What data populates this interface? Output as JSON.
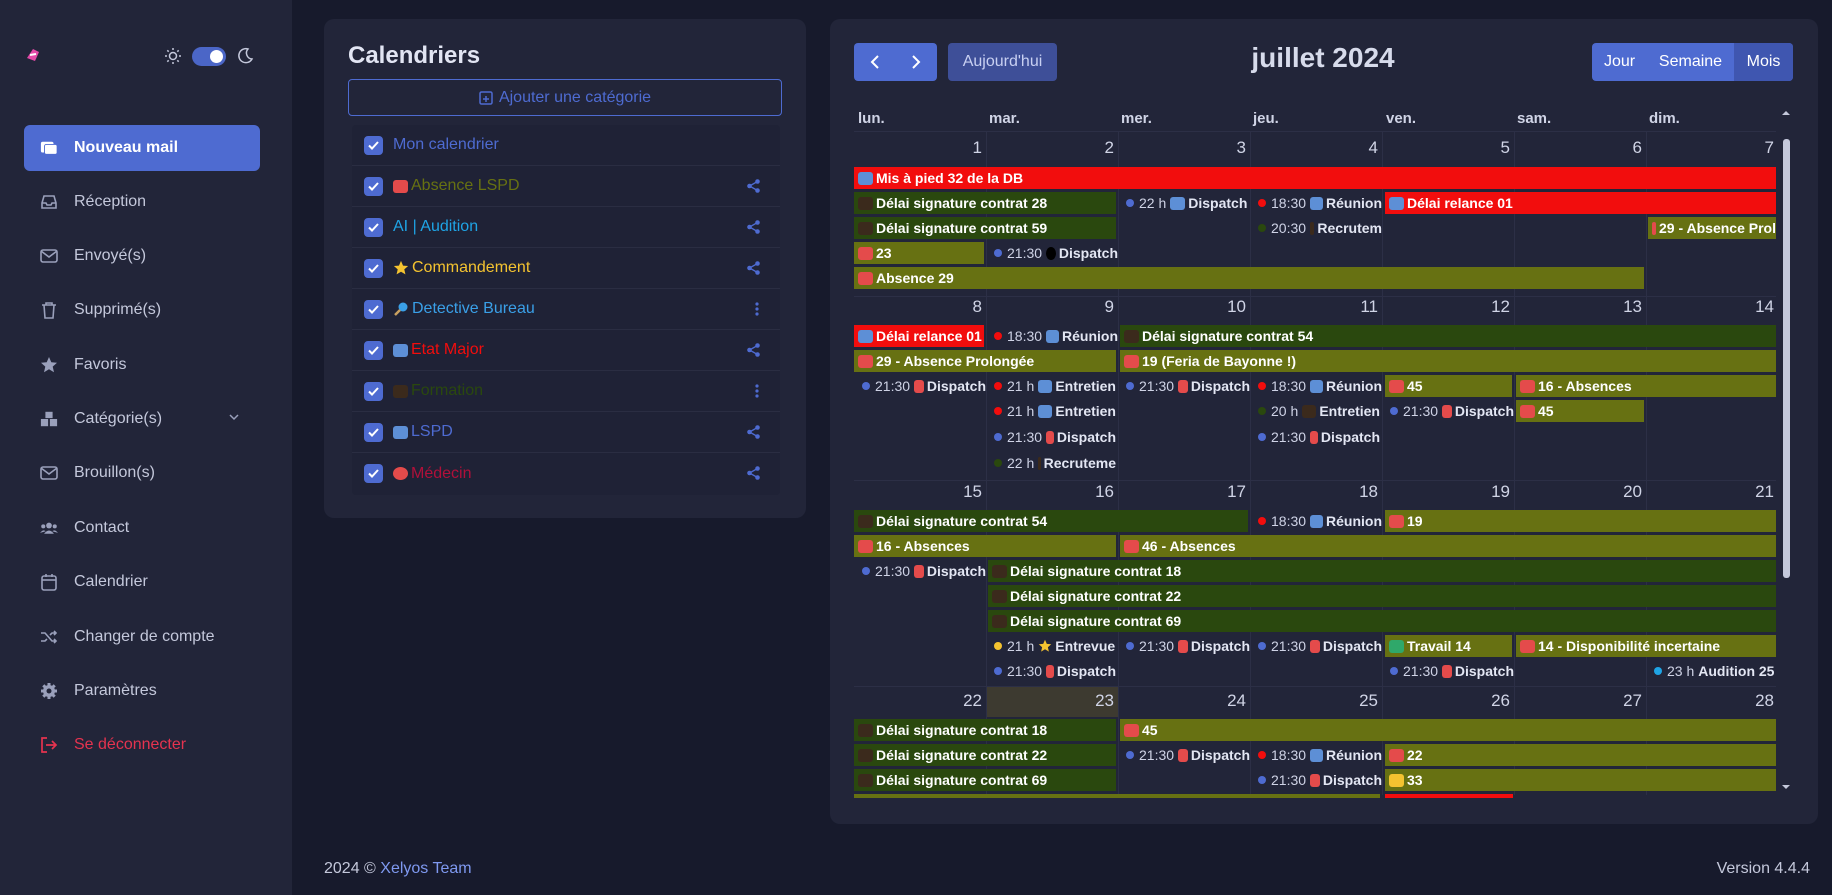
{
  "theme": {
    "icons": [
      "sun-icon",
      "toggle-switch",
      "moon-icon"
    ]
  },
  "sidebar": {
    "items": [
      {
        "label": "Nouveau mail",
        "icon": "new-mail-icon"
      },
      {
        "label": "Réception",
        "icon": "inbox-icon"
      },
      {
        "label": "Envoyé(s)",
        "icon": "envelope-icon"
      },
      {
        "label": "Supprimé(s)",
        "icon": "trash-icon"
      },
      {
        "label": "Favoris",
        "icon": "star-icon"
      },
      {
        "label": "Catégorie(s)",
        "icon": "boxes-icon"
      },
      {
        "label": "Brouillon(s)",
        "icon": "envelope-icon"
      },
      {
        "label": "Contact",
        "icon": "users-icon"
      },
      {
        "label": "Calendrier",
        "icon": "calendar-icon"
      },
      {
        "label": "Changer de compte",
        "icon": "shuffle-icon"
      },
      {
        "label": "Paramètres",
        "icon": "gear-icon"
      },
      {
        "label": "Se déconnecter",
        "icon": "logout-icon"
      }
    ]
  },
  "calendars": {
    "title": "Calendriers",
    "add_label": "Ajouter une catégorie",
    "items": [
      {
        "label": "Mon calendrier",
        "color": "#4e6bd1"
      },
      {
        "label": "Absence LSPD",
        "color": "#677112"
      },
      {
        "label": "AI | Audition",
        "color": "#1fa4e5"
      },
      {
        "label": "Commandement",
        "color": "#f4c330"
      },
      {
        "label": "Detective Bureau",
        "color": "#3aa0e8"
      },
      {
        "label": "Etat Major",
        "color": "#f20d0d"
      },
      {
        "label": "Formation",
        "color": "#2a480e"
      },
      {
        "label": "LSPD",
        "color": "#4e6bd1"
      },
      {
        "label": "Médecin",
        "color": "#b0103a"
      }
    ]
  },
  "calendar": {
    "today_label": "Aujourd'hui",
    "month_title": "juillet 2024",
    "views": [
      "Jour",
      "Semaine",
      "Mois"
    ],
    "weekdays": [
      "lun.",
      "mar.",
      "mer.",
      "jeu.",
      "ven.",
      "sam.",
      "dim."
    ],
    "weeks": [
      [
        "1",
        "2",
        "3",
        "4",
        "5",
        "6",
        "7"
      ],
      [
        "8",
        "9",
        "10",
        "11",
        "12",
        "13",
        "14"
      ],
      [
        "15",
        "16",
        "17",
        "18",
        "19",
        "20",
        "21"
      ],
      [
        "22",
        "23",
        "24",
        "25",
        "26",
        "27",
        "28"
      ]
    ],
    "events": {
      "w1": [
        {
          "label": "Mis à pied 32 de la DB"
        },
        {
          "label": "Délai signature contrat 28"
        },
        {
          "time": "22 h",
          "label": "Dispatch"
        },
        {
          "time": "18:30",
          "label": "Réunion"
        },
        {
          "label": "Délai relance 01"
        },
        {
          "label": "Délai signature contrat 59"
        },
        {
          "time": "20:30",
          "label": "Recrutem"
        },
        {
          "label": "29 - Absence Prol"
        },
        {
          "label": "23"
        },
        {
          "time": "21:30",
          "label": "Dispatch"
        },
        {
          "label": "Absence 29"
        }
      ],
      "w2": [
        {
          "label": "Délai relance 01"
        },
        {
          "time": "18:30",
          "label": "Réunion"
        },
        {
          "label": "Délai signature contrat 54"
        },
        {
          "label": "29 - Absence Prolongée"
        },
        {
          "label": "19 (Feria de Bayonne !)"
        },
        {
          "time": "21:30",
          "label": "Dispatch"
        },
        {
          "time": "21 h",
          "label": "Entretien"
        },
        {
          "time": "21:30",
          "label": "Dispatch"
        },
        {
          "time": "18:30",
          "label": "Réunion"
        },
        {
          "label": "45"
        },
        {
          "label": "16 - Absences"
        },
        {
          "time": "21 h",
          "label": "Entretien"
        },
        {
          "time": "20 h",
          "label": "Entretien"
        },
        {
          "time": "21:30",
          "label": "Dispatch"
        },
        {
          "label": "45"
        },
        {
          "time": "21:30",
          "label": "Dispatch"
        },
        {
          "time": "21:30",
          "label": "Dispatch"
        },
        {
          "time": "22 h",
          "label": "Recruteme"
        }
      ],
      "w3": [
        {
          "label": "Délai signature contrat 54"
        },
        {
          "time": "18:30",
          "label": "Réunion"
        },
        {
          "label": "19"
        },
        {
          "label": "16 - Absences"
        },
        {
          "label": "46 - Absences"
        },
        {
          "time": "21:30",
          "label": "Dispatch"
        },
        {
          "label": "Délai signature contrat 18"
        },
        {
          "label": "Délai signature contrat 22"
        },
        {
          "label": "Délai signature contrat 69"
        },
        {
          "time": "21 h",
          "label": "Entrevue S"
        },
        {
          "time": "21:30",
          "label": "Dispatch"
        },
        {
          "time": "21:30",
          "label": "Dispatch"
        },
        {
          "label": "Travail 14"
        },
        {
          "label": "14 - Disponibilité incertaine"
        },
        {
          "time": "21:30",
          "label": "Dispatch"
        },
        {
          "time": "21:30",
          "label": "Dispatch"
        },
        {
          "time": "23 h",
          "label": "Audition 25"
        }
      ],
      "w4": [
        {
          "label": "Délai signature contrat 18"
        },
        {
          "label": "45"
        },
        {
          "label": "Délai signature contrat 22"
        },
        {
          "time": "21:30",
          "label": "Dispatch"
        },
        {
          "time": "18:30",
          "label": "Réunion"
        },
        {
          "label": "22"
        },
        {
          "label": "Délai signature contrat 69"
        },
        {
          "time": "21:30",
          "label": "Dispatch"
        },
        {
          "label": "33"
        }
      ]
    }
  },
  "footer": {
    "year": "2024 ©",
    "team": "Xelyos Team",
    "version": "Version 4.4.4"
  }
}
